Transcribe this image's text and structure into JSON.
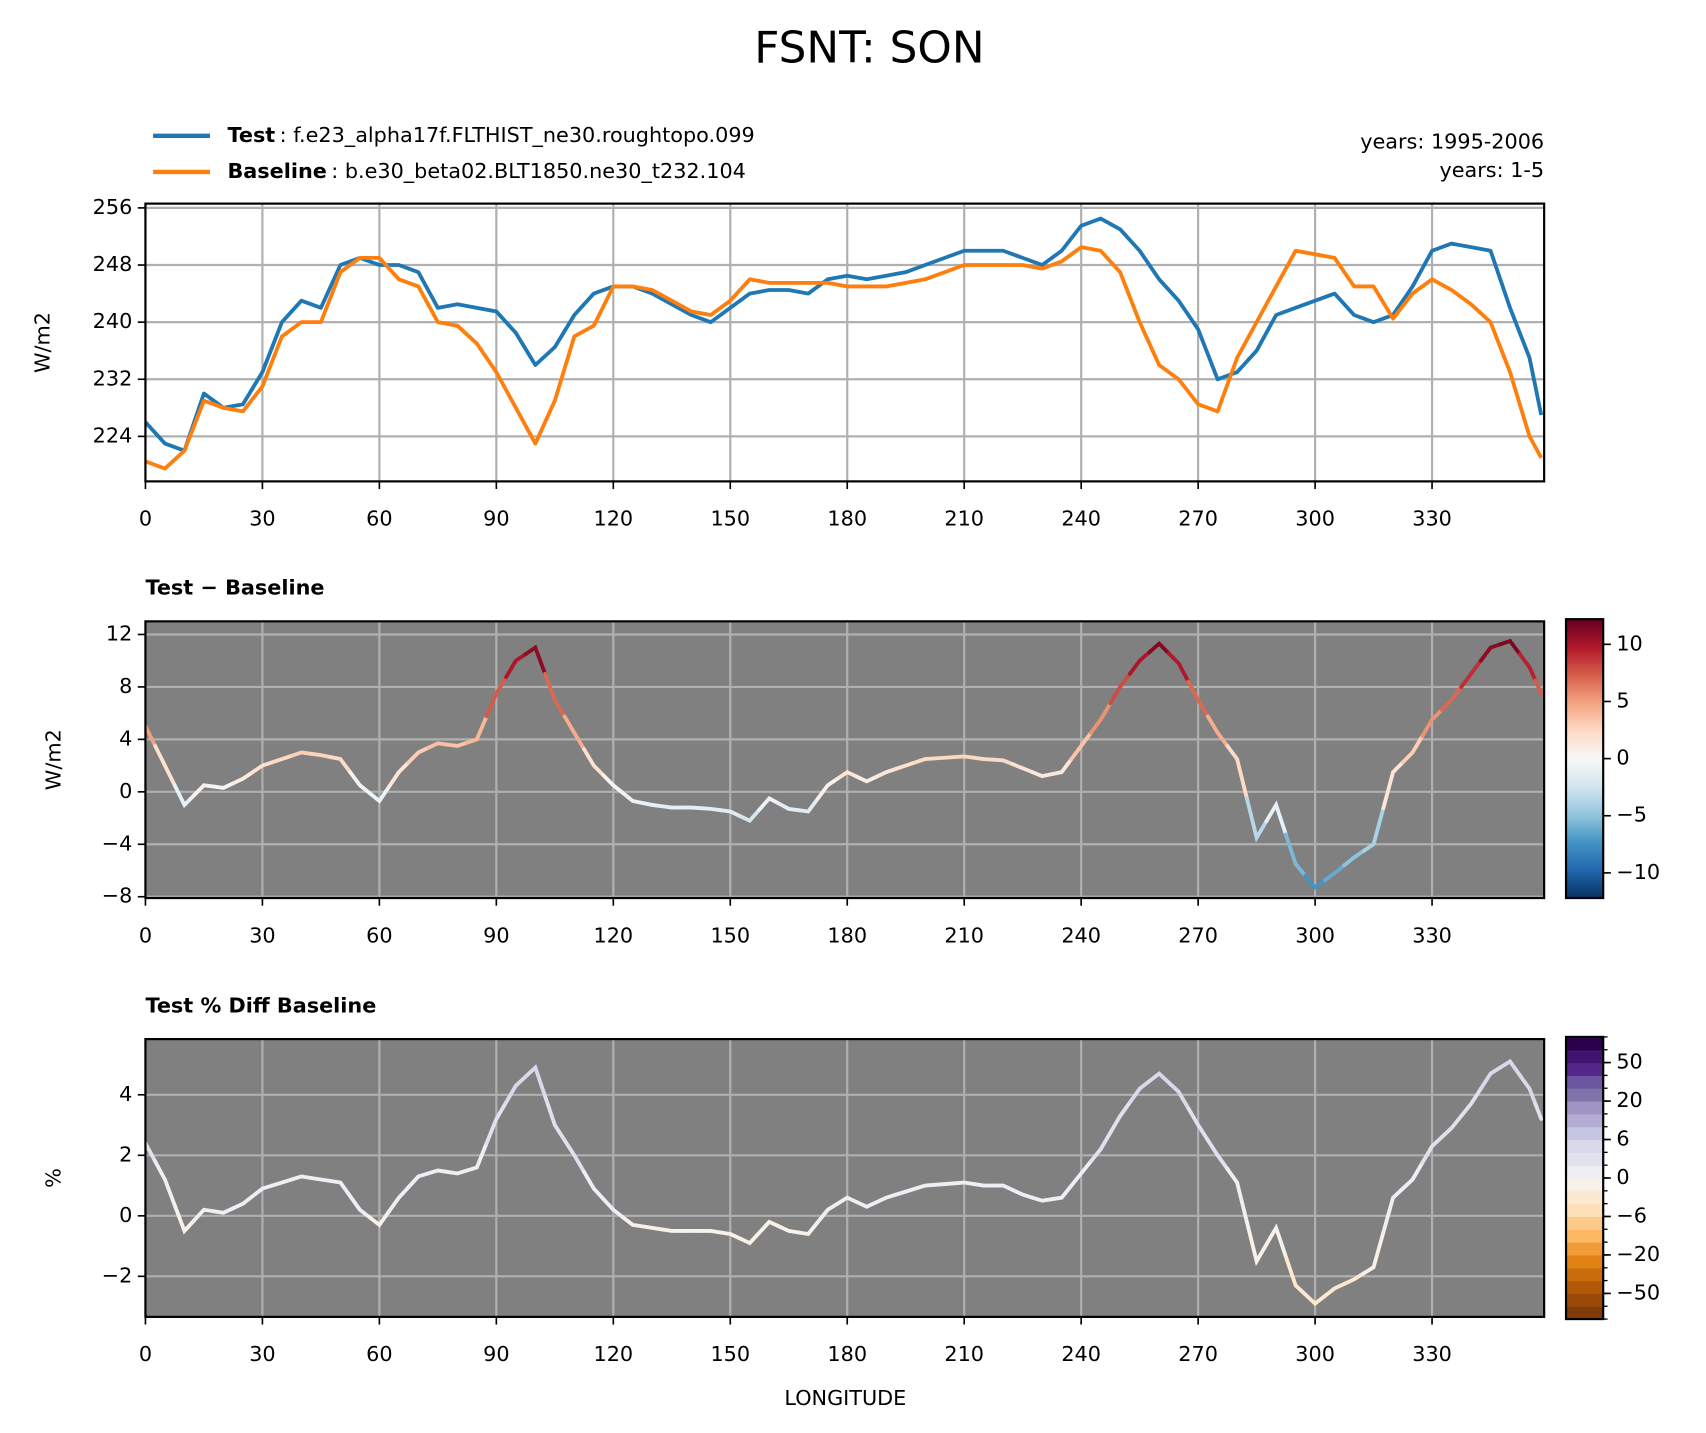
{
  "title": "FSNT: SON",
  "xlabel": "LONGITUDE",
  "chart_data": [
    {
      "type": "line",
      "ylabel": "W/m2",
      "grid": true,
      "x": [
        0,
        5,
        10,
        15,
        20,
        25,
        30,
        35,
        40,
        45,
        50,
        55,
        60,
        65,
        70,
        75,
        80,
        85,
        90,
        95,
        100,
        105,
        110,
        115,
        120,
        125,
        130,
        135,
        140,
        145,
        150,
        155,
        160,
        165,
        170,
        175,
        180,
        185,
        190,
        195,
        200,
        205,
        210,
        215,
        220,
        225,
        230,
        235,
        240,
        245,
        250,
        255,
        260,
        265,
        270,
        275,
        280,
        285,
        290,
        295,
        300,
        305,
        310,
        315,
        320,
        325,
        330,
        335,
        340,
        345,
        350,
        355,
        358
      ],
      "xlim": [
        0,
        358.75
      ],
      "xticks": [
        0,
        30,
        60,
        90,
        120,
        150,
        180,
        210,
        240,
        270,
        300,
        330
      ],
      "ylim": [
        217.7,
        256.6
      ],
      "yticks": [
        224,
        232,
        240,
        248,
        256
      ],
      "series": [
        {
          "name": "Test",
          "label": ": f.e23_alpha17f.FLTHIST_ne30.roughtopo.099",
          "years": "years: 1995-2006",
          "color": "#1f77b4",
          "values": [
            226,
            223,
            222,
            230,
            228,
            228.5,
            233,
            240,
            243,
            242,
            248,
            249,
            248,
            248,
            247,
            242,
            242.5,
            242,
            241.5,
            238.5,
            234,
            236.5,
            241,
            244,
            245,
            245,
            244,
            242.5,
            241,
            240,
            242,
            244,
            244.5,
            244.5,
            244,
            246,
            246.5,
            246,
            246.5,
            247,
            248,
            249,
            250,
            250,
            250,
            249,
            248,
            250,
            253.5,
            254.5,
            253,
            250,
            246,
            243,
            239,
            232,
            233,
            236,
            241,
            242,
            243,
            244,
            241,
            240,
            241,
            245,
            250,
            251,
            250.5,
            250,
            242,
            235,
            227
          ]
        },
        {
          "name": "Baseline",
          "label": ": b.e30_beta02.BLT1850.ne30_t232.104",
          "years": "years: 1-5",
          "color": "#ff7f0e",
          "values": [
            220.5,
            219.5,
            222,
            229,
            228,
            227.5,
            231,
            238,
            240,
            240,
            247,
            249,
            249,
            246,
            245,
            240,
            239.5,
            237,
            233,
            228,
            223,
            229,
            238,
            239.5,
            245,
            245,
            244.5,
            243,
            241.5,
            241,
            243,
            246,
            245.5,
            245.5,
            245.5,
            245.5,
            245,
            245,
            245,
            245.5,
            246,
            247,
            248,
            248,
            248,
            248,
            247.5,
            248.5,
            250.5,
            250,
            247,
            240,
            234,
            232,
            228.5,
            227.5,
            235,
            240,
            245,
            250,
            249.5,
            249,
            245,
            245,
            240.5,
            244,
            246,
            244.5,
            242.5,
            240,
            233,
            224,
            221
          ]
        }
      ]
    },
    {
      "type": "colored_line",
      "title": "Test − Baseline",
      "ylabel": "W/m2",
      "grid": true,
      "background": "#808080",
      "x": [
        0,
        5,
        10,
        15,
        20,
        25,
        30,
        35,
        40,
        45,
        50,
        55,
        60,
        65,
        70,
        75,
        80,
        85,
        90,
        95,
        100,
        105,
        110,
        115,
        120,
        125,
        130,
        135,
        140,
        145,
        150,
        155,
        160,
        165,
        170,
        175,
        180,
        185,
        190,
        195,
        200,
        205,
        210,
        215,
        220,
        225,
        230,
        235,
        240,
        245,
        250,
        255,
        260,
        265,
        270,
        275,
        280,
        285,
        290,
        295,
        300,
        305,
        310,
        315,
        320,
        325,
        330,
        335,
        340,
        345,
        350,
        355,
        358
      ],
      "xlim": [
        0,
        358.75
      ],
      "xticks": [
        0,
        30,
        60,
        90,
        120,
        150,
        180,
        210,
        240,
        270,
        300,
        330
      ],
      "ylim": [
        -8.1,
        13
      ],
      "yticks": [
        {
          "value": -8,
          "label": "−8"
        },
        {
          "value": -4,
          "label": "−4"
        },
        0,
        4,
        8,
        12
      ],
      "values": [
        5,
        2,
        -1,
        0.5,
        0.3,
        1,
        2,
        2.5,
        3,
        2.8,
        2.5,
        0.5,
        -0.7,
        1.5,
        3,
        3.7,
        3.5,
        4,
        7.5,
        10,
        11,
        7,
        4.5,
        2,
        0.5,
        -0.7,
        -1,
        -1.2,
        -1.2,
        -1.3,
        -1.5,
        -2.2,
        -0.5,
        -1.3,
        -1.5,
        0.5,
        1.5,
        0.8,
        1.5,
        2,
        2.5,
        2.6,
        2.7,
        2.5,
        2.4,
        1.8,
        1.2,
        1.5,
        3.5,
        5.5,
        8,
        10,
        11.3,
        9.8,
        7,
        4.5,
        2.5,
        -3.5,
        -1,
        -5.5,
        -7.3,
        -6.2,
        -5,
        -4,
        1.5,
        3,
        5.5,
        7,
        9,
        11,
        11.5,
        9.5,
        7.5
      ],
      "colorbar": {
        "lim": [
          -12.2,
          12.2
        ],
        "ticks": [
          {
            "value": -10,
            "label": "−10"
          },
          {
            "value": -5,
            "label": "−5"
          },
          0,
          5,
          10
        ],
        "colors": [
          "#053061",
          "#2166ac",
          "#4393c3",
          "#92c5de",
          "#d1e5f0",
          "#f7f7f7",
          "#fddbc7",
          "#f4a582",
          "#d6604d",
          "#b2182b",
          "#67001f"
        ]
      }
    },
    {
      "type": "colored_line",
      "title": "Test % Diff Baseline",
      "ylabel": "%",
      "grid": true,
      "background": "#808080",
      "x": [
        0,
        5,
        10,
        15,
        20,
        25,
        30,
        35,
        40,
        45,
        50,
        55,
        60,
        65,
        70,
        75,
        80,
        85,
        90,
        95,
        100,
        105,
        110,
        115,
        120,
        125,
        130,
        135,
        140,
        145,
        150,
        155,
        160,
        165,
        170,
        175,
        180,
        185,
        190,
        195,
        200,
        205,
        210,
        215,
        220,
        225,
        230,
        235,
        240,
        245,
        250,
        255,
        260,
        265,
        270,
        275,
        280,
        285,
        290,
        295,
        300,
        305,
        310,
        315,
        320,
        325,
        330,
        335,
        340,
        345,
        350,
        355,
        358
      ],
      "xlim": [
        0,
        358.75
      ],
      "xticks": [
        0,
        30,
        60,
        90,
        120,
        150,
        180,
        210,
        240,
        270,
        300,
        330
      ],
      "ylim": [
        -3.34,
        5.84
      ],
      "yticks": [
        {
          "value": -2,
          "label": "−2"
        },
        0,
        2,
        4
      ],
      "values": [
        2.4,
        1.2,
        -0.5,
        0.2,
        0.1,
        0.4,
        0.9,
        1.1,
        1.3,
        1.2,
        1.1,
        0.2,
        -0.3,
        0.6,
        1.3,
        1.5,
        1.4,
        1.6,
        3.2,
        4.3,
        4.9,
        3,
        2,
        0.9,
        0.2,
        -0.3,
        -0.4,
        -0.5,
        -0.5,
        -0.5,
        -0.6,
        -0.9,
        -0.2,
        -0.5,
        -0.6,
        0.2,
        0.6,
        0.3,
        0.6,
        0.8,
        1,
        1.05,
        1.1,
        1,
        1,
        0.7,
        0.5,
        0.6,
        1.4,
        2.2,
        3.3,
        4.2,
        4.7,
        4.1,
        3,
        2,
        1.1,
        -1.5,
        -0.4,
        -2.3,
        -2.9,
        -2.4,
        -2.1,
        -1.7,
        0.6,
        1.2,
        2.3,
        2.9,
        3.7,
        4.7,
        5.1,
        4.2,
        3.2
      ],
      "colorbar": {
        "levels": [
          -100,
          -75,
          -50,
          -40,
          -30,
          -20,
          -15,
          -10,
          -6,
          -4,
          -2,
          0,
          2,
          4,
          6,
          10,
          15,
          20,
          30,
          40,
          50,
          75,
          100
        ],
        "ticks": [
          {
            "value": -50,
            "label": "−50"
          },
          {
            "value": -20,
            "label": "−20"
          },
          {
            "value": -6,
            "label": "−6"
          },
          0,
          6,
          20,
          50
        ],
        "colors": [
          "#7f3b08",
          "#9a4a08",
          "#b35806",
          "#c96c0c",
          "#e08214",
          "#f09a3a",
          "#fdb863",
          "#fdc98a",
          "#fee0b6",
          "#fde9cf",
          "#f7f1ea",
          "#eeeef4",
          "#e1e1ee",
          "#d8daeb",
          "#c7c6e2",
          "#b2abd2",
          "#9e95c5",
          "#8073ac",
          "#6a55a0",
          "#542788",
          "#3f1370",
          "#2d004b"
        ]
      }
    }
  ]
}
